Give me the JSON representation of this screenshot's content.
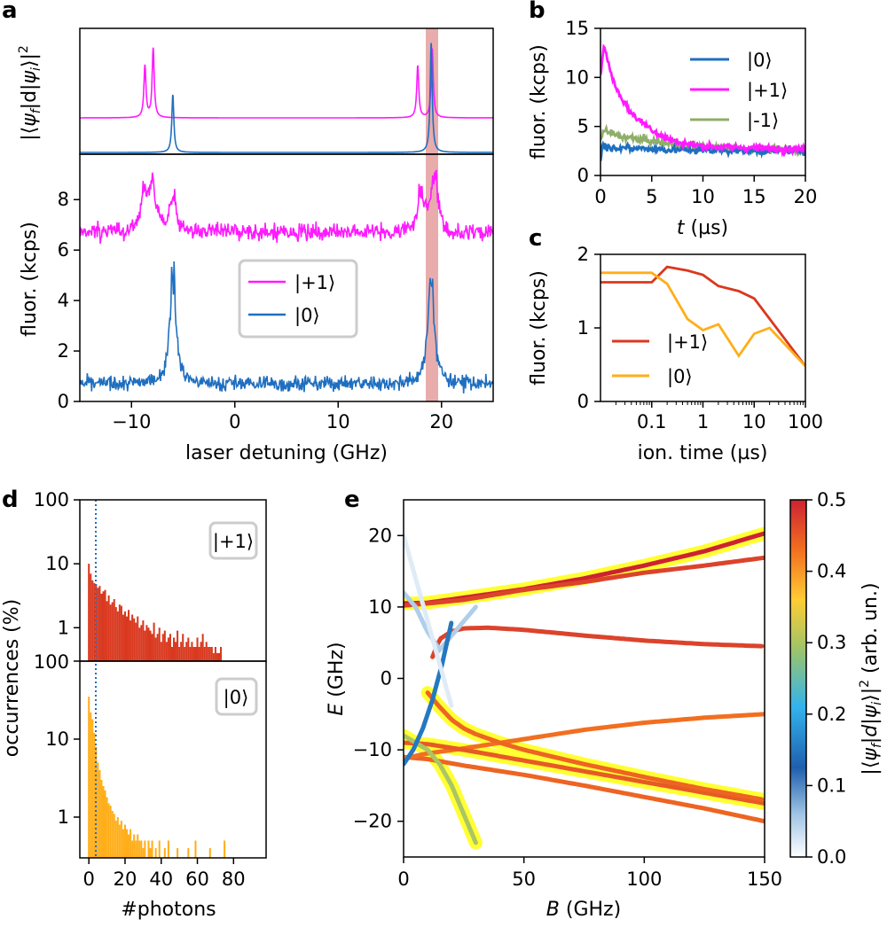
{
  "panels": {
    "a": {
      "label": "a",
      "top_ylabel": "|⟨ψ_f|d|ψ_i⟩|²",
      "ylabel": "fluor. (kcps)",
      "xlabel": "laser detuning (GHz)",
      "xticks": [
        "−10",
        "0",
        "10",
        "20"
      ],
      "yticks": [
        "0",
        "2",
        "4",
        "6",
        "8"
      ],
      "legend": [
        "|+1⟩",
        "|0⟩"
      ]
    },
    "b": {
      "label": "b",
      "ylabel": "fluor. (kcps)",
      "xlabel_var": "t",
      "xlabel_unit": " (µs)",
      "xticks": [
        "0",
        "5",
        "10",
        "15",
        "20"
      ],
      "yticks": [
        "0",
        "5",
        "10",
        "15"
      ],
      "legend": [
        "|0⟩",
        "|+1⟩",
        "|-1⟩"
      ]
    },
    "c": {
      "label": "c",
      "ylabel": "fluor. (kcps)",
      "xlabel": "ion. time (µs)",
      "xticks": [
        "0.1",
        "1",
        "10",
        "100"
      ],
      "yticks": [
        "0",
        "1",
        "2"
      ],
      "legend": [
        "|+1⟩",
        "|0⟩"
      ]
    },
    "d": {
      "label": "d",
      "ylabel": "occurrences (%)",
      "xlabel": "#photons",
      "xticks": [
        "0",
        "20",
        "40",
        "60",
        "80"
      ],
      "yticks_top": [
        "100",
        "10",
        "1"
      ],
      "yticks_bottom": [
        "100",
        "10",
        "1"
      ],
      "box_top": "|+1⟩",
      "box_bottom": "|0⟩"
    },
    "e": {
      "label": "e",
      "ylabel_var": "E",
      "ylabel_unit": " (GHz)",
      "xlabel_var": "B",
      "xlabel_unit": " (GHz)",
      "xticks": [
        "0",
        "50",
        "100",
        "150"
      ],
      "yticks": [
        "−20",
        "−10",
        "0",
        "10",
        "20"
      ],
      "cbar_label": "|⟨ψ_f|d|ψ_i⟩|² (arb. un.)",
      "cbar_ticks": [
        "0.0",
        "0.1",
        "0.2",
        "0.3",
        "0.4",
        "0.5"
      ]
    }
  },
  "colors": {
    "magenta": "#ff1aff",
    "blue": "#1f6fc0",
    "green": "#8fae6a",
    "red": "#d9381e",
    "orange": "#ffae1a",
    "pink_band": "#e6a3a3",
    "yellow": "#ffff33"
  },
  "chart_data": [
    {
      "panel": "a-top",
      "type": "line",
      "series": [
        {
          "name": "|+1⟩",
          "peaks_x": [
            -8.7,
            -7.9,
            17.7,
            19.1
          ],
          "peaks_height": [
            0.45,
            0.6,
            0.45,
            0.6
          ]
        },
        {
          "name": "|0⟩",
          "peaks_x": [
            -6.0,
            19.0
          ],
          "peaks_height": [
            0.5,
            0.95
          ]
        }
      ],
      "xlim": [
        -15,
        25
      ]
    },
    {
      "panel": "a",
      "type": "line",
      "xlabel": "laser detuning (GHz)",
      "ylabel": "fluor. (kcps)",
      "xlim": [
        -15,
        25
      ],
      "ylim": [
        0,
        9.8
      ],
      "highlight_band_x": [
        18.4,
        19.6
      ],
      "series": [
        {
          "name": "|+1⟩",
          "baseline": 6.7,
          "peaks_x": [
            -8.8,
            -8.0,
            -6.0,
            18.0,
            19.3
          ],
          "peaks_height": [
            1.5,
            2.2,
            1.6,
            1.7,
            2.6
          ]
        },
        {
          "name": "|0⟩",
          "baseline": 0.7,
          "peaks_x": [
            -6.0,
            19.0
          ],
          "peaks_height": [
            4.8,
            4.6
          ]
        }
      ]
    },
    {
      "panel": "b",
      "type": "line",
      "xlabel": "t (µs)",
      "ylabel": "fluor. (kcps)",
      "xlim": [
        0,
        20
      ],
      "ylim": [
        0,
        15
      ],
      "series": [
        {
          "name": "|0⟩",
          "x": [
            0,
            0.2,
            0.5,
            1,
            2,
            3,
            4,
            5,
            7,
            10,
            15,
            20
          ],
          "y": [
            1.5,
            3.2,
            3.0,
            2.8,
            2.9,
            2.7,
            2.8,
            2.7,
            2.6,
            2.6,
            2.5,
            2.5
          ]
        },
        {
          "name": "|+1⟩",
          "x": [
            0,
            0.3,
            0.6,
            1,
            1.5,
            2,
            2.5,
            3,
            4,
            5,
            6,
            7,
            8,
            10,
            12,
            15,
            20
          ],
          "y": [
            10,
            13.2,
            12.2,
            10.5,
            9.0,
            8.0,
            7.2,
            6.3,
            5.5,
            4.7,
            4.0,
            3.6,
            3.3,
            3.0,
            2.9,
            2.8,
            2.7
          ]
        },
        {
          "name": "|-1⟩",
          "x": [
            0,
            0.3,
            1,
            2,
            3,
            5,
            7,
            10,
            15,
            20
          ],
          "y": [
            3.5,
            4.6,
            4.3,
            4.0,
            3.8,
            3.5,
            3.2,
            2.9,
            2.7,
            2.5
          ]
        }
      ]
    },
    {
      "panel": "c",
      "type": "line",
      "xlabel": "ion. time (µs)",
      "ylabel": "fluor. (kcps)",
      "xscale": "log",
      "xlim": [
        0.01,
        100
      ],
      "ylim": [
        0,
        2
      ],
      "series": [
        {
          "name": "|+1⟩",
          "x": [
            0.01,
            0.1,
            0.2,
            0.5,
            1,
            2,
            5,
            10,
            100
          ],
          "y": [
            1.62,
            1.62,
            1.83,
            1.78,
            1.72,
            1.57,
            1.5,
            1.4,
            0.48
          ]
        },
        {
          "name": "|0⟩",
          "x": [
            0.01,
            0.1,
            0.2,
            0.5,
            1,
            2,
            5,
            10,
            20,
            100
          ],
          "y": [
            1.75,
            1.75,
            1.6,
            1.12,
            0.97,
            1.05,
            0.62,
            0.92,
            1.0,
            0.48
          ]
        }
      ]
    },
    {
      "panel": "d-top",
      "type": "bar",
      "title": "|+1⟩",
      "xlabel": "#photons",
      "ylabel": "occurrences (%)",
      "yscale": "log",
      "ylim": [
        0.3,
        100
      ],
      "xlim": [
        -5,
        98
      ],
      "threshold_x": 3,
      "bins_start": 0,
      "values": [
        10,
        7,
        5.5,
        5,
        4.8,
        4.2,
        4.5,
        3.4,
        3.7,
        3.9,
        2.6,
        3.2,
        2.3,
        2.5,
        2.8,
        2.1,
        1.8,
        2.3,
        2.2,
        1.6,
        1.8,
        1.5,
        1.9,
        1.3,
        1.6,
        1.4,
        1.2,
        1.5,
        1.0,
        1.1,
        1.3,
        0.9,
        1.1,
        1.0,
        0.9,
        0.8,
        1.2,
        0.7,
        0.8,
        1.0,
        0.6,
        0.8,
        0.9,
        0.6,
        0.7,
        0.8,
        0.5,
        0.7,
        0.6,
        0.9,
        0.5,
        0.6,
        0.8,
        0.5,
        0.6,
        0.7,
        0.5,
        0.6,
        0.5,
        0.5,
        0.7,
        0.5,
        0.6,
        0.8,
        0.5,
        0.6,
        0.5,
        0.5,
        0.5,
        0.4,
        0.5,
        0.4,
        0.4,
        0.5
      ]
    },
    {
      "panel": "d-bottom",
      "type": "bar",
      "title": "|0⟩",
      "yscale": "log",
      "ylim": [
        0.3,
        100
      ],
      "xlim": [
        -5,
        98
      ],
      "threshold_x": 3,
      "bins_start": 0,
      "values": [
        35,
        22,
        18,
        12,
        8,
        5,
        4,
        3,
        2.5,
        2.2,
        1.8,
        1.5,
        1.4,
        1.2,
        1.1,
        0.9,
        1.0,
        0.8,
        0.9,
        0.7,
        0.8,
        0.7,
        0.6,
        0.7,
        0.5,
        0.6,
        0.5,
        0.6,
        0.5,
        0.5,
        0.4,
        0.5,
        0,
        0.5,
        0.4,
        0.5,
        0,
        0.4,
        0,
        0.5,
        0,
        0,
        0.4,
        0,
        0.5,
        0,
        0,
        0,
        0,
        0.4,
        0,
        0,
        0,
        0,
        0,
        0.4,
        0,
        0,
        0,
        0.5,
        0,
        0,
        0,
        0,
        0,
        0,
        0,
        0.4,
        0,
        0,
        0,
        0,
        0,
        0,
        0,
        0.5
      ]
    },
    {
      "panel": "e",
      "type": "line",
      "xlabel": "B (GHz)",
      "ylabel": "E (GHz)",
      "xlim": [
        0,
        150
      ],
      "ylim": [
        -25,
        25
      ],
      "colorbar_range": [
        0,
        0.5
      ],
      "series": [
        {
          "x": [
            0,
            10,
            25,
            50,
            75,
            100,
            125,
            150
          ],
          "y": [
            10.5,
            10.6,
            11.3,
            12.5,
            14,
            15.8,
            17.8,
            20.3
          ],
          "weight": 0.5,
          "highlight": true
        },
        {
          "x": [
            0,
            10,
            25,
            50,
            75,
            100,
            125,
            150
          ],
          "y": [
            10.2,
            10.5,
            11,
            12.4,
            13.5,
            14.8,
            15.8,
            16.9
          ],
          "weight": 0.47,
          "highlight": false
        },
        {
          "x": [
            12,
            15,
            20,
            25,
            35,
            50,
            75,
            100,
            125,
            150
          ],
          "y": [
            3,
            5.5,
            6.6,
            7,
            7.1,
            6.8,
            6,
            5.3,
            4.8,
            4.5
          ],
          "weight": 0.47,
          "highlight": false
        },
        {
          "x": [
            0,
            10,
            25,
            50,
            75,
            100,
            125,
            150
          ],
          "y": [
            -11,
            -11.3,
            -12.2,
            -13.5,
            -15,
            -16.6,
            -18.2,
            -20
          ],
          "weight": 0.44,
          "highlight": false
        },
        {
          "x": [
            0,
            10,
            25,
            50,
            75,
            100,
            125,
            150
          ],
          "y": [
            -11.2,
            -10.5,
            -9.8,
            -8.5,
            -7.2,
            -6.2,
            -5.5,
            -5
          ],
          "weight": 0.43,
          "highlight": false
        },
        {
          "x": [
            0,
            10,
            25,
            50,
            75,
            100,
            125,
            150
          ],
          "y": [
            -9,
            -9.2,
            -10,
            -11.5,
            -13,
            -14.5,
            -16,
            -17.5
          ],
          "weight": 0.45,
          "highlight": true
        },
        {
          "x": [
            10,
            15,
            20,
            25,
            30,
            40,
            50,
            75,
            100,
            125,
            150
          ],
          "y": [
            -2,
            -4,
            -5.8,
            -7,
            -7.8,
            -9,
            -10,
            -12,
            -13.8,
            -15.5,
            -17
          ],
          "weight": 0.44,
          "highlight": true
        },
        {
          "x": [
            0,
            5,
            10,
            15,
            20,
            25,
            30
          ],
          "y": [
            12,
            10,
            6.5,
            4,
            6,
            8,
            10
          ],
          "weight": 0.05,
          "highlight": false
        },
        {
          "x": [
            0,
            5,
            10,
            15,
            20,
            25,
            30
          ],
          "y": [
            -8,
            -9,
            -10,
            -12,
            -15,
            -19,
            -23
          ],
          "weight": 0.3,
          "highlight": true
        },
        {
          "x": [
            0,
            4,
            8,
            12,
            16,
            20
          ],
          "y": [
            -12,
            -10,
            -7,
            -3,
            2,
            8
          ],
          "weight": 0.15,
          "highlight": false
        },
        {
          "x": [
            0,
            5,
            10,
            15,
            20
          ],
          "y": [
            20,
            14,
            8,
            2,
            -4
          ],
          "weight": 0.02,
          "highlight": false
        }
      ]
    }
  ]
}
